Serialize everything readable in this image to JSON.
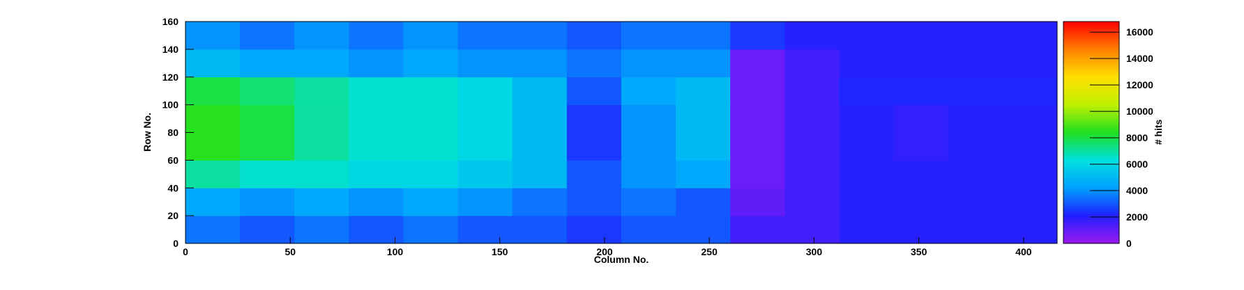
{
  "chart_data": {
    "type": "heatmap",
    "xlabel": "Column No.",
    "ylabel": "Row No.",
    "zlabel": "# hits",
    "xbins": [
      0,
      26,
      52,
      78,
      104,
      130,
      156,
      182,
      208,
      234,
      260,
      286,
      312,
      338,
      364,
      390,
      416
    ],
    "ybins": [
      0,
      20,
      40,
      60,
      80,
      100,
      120,
      140,
      160
    ],
    "z": [
      [
        3500,
        3000,
        3500,
        3000,
        3500,
        3000,
        3000,
        2500,
        3000,
        3000,
        1500,
        1500,
        2000,
        2000,
        2000,
        2000
      ],
      [
        4500,
        4000,
        4500,
        4000,
        4500,
        4000,
        3500,
        3000,
        3500,
        3000,
        1000,
        1500,
        2000,
        2000,
        2000,
        2000
      ],
      [
        7000,
        6500,
        6500,
        6000,
        6000,
        5500,
        5000,
        3000,
        4000,
        4500,
        800,
        1500,
        2000,
        2000,
        2000,
        2000
      ],
      [
        8500,
        8000,
        7000,
        6500,
        6500,
        6000,
        5000,
        2500,
        4000,
        5000,
        800,
        1500,
        2000,
        1800,
        2000,
        2000
      ],
      [
        8500,
        8000,
        7000,
        6500,
        6500,
        6000,
        5000,
        2500,
        4000,
        5000,
        800,
        1500,
        2000,
        1800,
        2000,
        2000
      ],
      [
        8000,
        7500,
        7000,
        6500,
        6500,
        6000,
        5000,
        3000,
        4500,
        5000,
        800,
        1500,
        2200,
        2200,
        2200,
        2200
      ],
      [
        5000,
        4500,
        4500,
        4000,
        4500,
        4000,
        4000,
        3500,
        4000,
        4000,
        800,
        1500,
        2000,
        2000,
        2000,
        2000
      ],
      [
        4000,
        3500,
        4000,
        3500,
        4000,
        3500,
        3500,
        3000,
        3500,
        3500,
        2500,
        2000,
        2000,
        2000,
        2000,
        2000
      ]
    ],
    "xlim": [
      0,
      416
    ],
    "ylim": [
      0,
      160
    ],
    "zlim": [
      0,
      16800
    ],
    "xticks": [
      0,
      50,
      100,
      150,
      200,
      250,
      300,
      350,
      400
    ],
    "yticks": [
      0,
      20,
      40,
      60,
      80,
      100,
      120,
      140,
      160
    ],
    "zticks": [
      0,
      2000,
      4000,
      6000,
      8000,
      10000,
      12000,
      14000,
      16000
    ],
    "colorscale": [
      "#9a1af0",
      "#2020ff",
      "#00a0ff",
      "#00e0e0",
      "#20e020",
      "#c0f000",
      "#ffe000",
      "#ff8000",
      "#ff0000"
    ]
  }
}
